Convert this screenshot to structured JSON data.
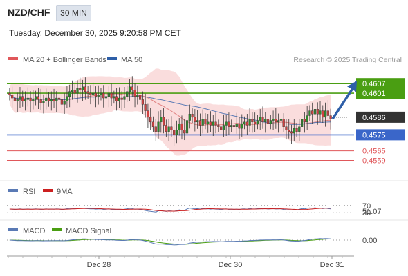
{
  "header": {
    "symbol": "NZD/CHF",
    "timeframe": "30 MIN",
    "datetime": "Tuesday, December 30, 2025 9:20:58 PM CET",
    "credit": "Research © 2025 Trading Central"
  },
  "legend": {
    "ma20_bb": "MA 20 + Bollinger Bands",
    "ma50": "MA 50",
    "rsi": "RSI",
    "rsi_ma": "9MA",
    "macd": "MACD",
    "macd_signal": "MACD Signal"
  },
  "colors": {
    "resistance": "#4a9e12",
    "support": "#3a66c9",
    "target": "#e0575a",
    "last_price_box": "#333333",
    "up_candle": "#2d8a2d",
    "down_candle": "#d04040",
    "bollinger_fill": "#f9d7d7",
    "ma20": "#e08080",
    "ma50": "#5a7ab5",
    "arrow": "#2e5fa8"
  },
  "chart_data": [
    {
      "type": "candlestick",
      "title": "NZD/CHF 30 MIN",
      "x_ticks": [
        "Dec 28",
        "Dec 30",
        "Dec 31"
      ],
      "ylim": [
        0.4548,
        0.4617
      ],
      "last_price": 0.4586,
      "levels": [
        {
          "value": 0.4607,
          "label": "0.4607",
          "kind": "resistance"
        },
        {
          "value": 0.4601,
          "label": "0.4601",
          "kind": "resistance"
        },
        {
          "value": 0.4575,
          "label": "0.4575",
          "kind": "support"
        },
        {
          "value": 0.4565,
          "label": "0.4565",
          "kind": "target"
        },
        {
          "value": 0.4559,
          "label": "0.4559",
          "kind": "target"
        }
      ],
      "forecast_arrow": {
        "from": 0.4585,
        "to": 0.4607
      },
      "close_series": [
        0.46,
        0.4598,
        0.4596,
        0.4597,
        0.4599,
        0.4596,
        0.4597,
        0.4598,
        0.4596,
        0.4597,
        0.4599,
        0.4597,
        0.4595,
        0.4596,
        0.4598,
        0.4596,
        0.4597,
        0.4596,
        0.4598,
        0.4597,
        0.4594,
        0.4596,
        0.4599,
        0.4602,
        0.4603,
        0.4601,
        0.4604,
        0.4603,
        0.4605,
        0.4602,
        0.4601,
        0.46,
        0.4601,
        0.4599,
        0.46,
        0.4601,
        0.4598,
        0.4599,
        0.4601,
        0.4598,
        0.4599,
        0.4596,
        0.4598,
        0.4597,
        0.4599,
        0.4602,
        0.4605,
        0.4603,
        0.4599,
        0.46,
        0.4597,
        0.4594,
        0.459,
        0.4586,
        0.4583,
        0.458,
        0.4577,
        0.4583,
        0.4586,
        0.4581,
        0.4577,
        0.458,
        0.4578,
        0.4575,
        0.4578,
        0.4582,
        0.4578,
        0.4576,
        0.4584,
        0.4588,
        0.4586,
        0.4583,
        0.4584,
        0.4581,
        0.4585,
        0.4582,
        0.4583,
        0.4581,
        0.4583,
        0.4581,
        0.458,
        0.4578,
        0.4581,
        0.4583,
        0.458,
        0.4581,
        0.458,
        0.4582,
        0.4579,
        0.4582,
        0.4583,
        0.4581,
        0.4585,
        0.4583,
        0.4582,
        0.4584,
        0.4586,
        0.4583,
        0.4585,
        0.4582,
        0.4584,
        0.4585,
        0.4583,
        0.4584,
        0.4585,
        0.458,
        0.4578,
        0.4577,
        0.4576,
        0.4579,
        0.4577,
        0.458,
        0.4585,
        0.4583,
        0.4587,
        0.459,
        0.4588,
        0.4591,
        0.4588,
        0.459,
        0.4586,
        0.459,
        0.4587,
        0.4585
      ]
    },
    {
      "type": "line",
      "title": "RSI",
      "ticks": [
        "70",
        "30"
      ],
      "last_value": "51.07",
      "ylim": [
        0,
        100
      ]
    },
    {
      "type": "line",
      "title": "MACD",
      "last_value": "0.00"
    }
  ]
}
